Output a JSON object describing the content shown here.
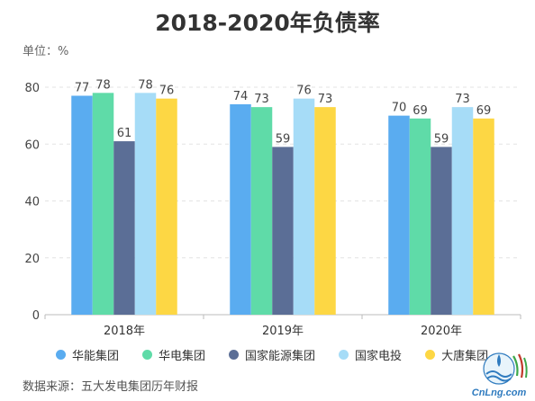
{
  "title": "2018-2020年负债率",
  "unit_label": "单位：%",
  "source": "数据来源：五大发电集团历年财报",
  "watermark": "CnLng.com",
  "chart_data": {
    "type": "bar",
    "title": "2018-2020年负债率",
    "categories": [
      "2018年",
      "2019年",
      "2020年"
    ],
    "ylim": [
      0,
      80
    ],
    "yticks": [
      0,
      20,
      40,
      60,
      80
    ],
    "grid": true,
    "legend_position": "bottom",
    "series": [
      {
        "name": "华能集团",
        "color": "#5aacf0",
        "values": [
          77,
          74,
          70
        ]
      },
      {
        "name": "华电集团",
        "color": "#5fdba8",
        "values": [
          78,
          73,
          69
        ]
      },
      {
        "name": "国家能源集团",
        "color": "#5b6e96",
        "values": [
          61,
          59,
          59
        ]
      },
      {
        "name": "国家电投",
        "color": "#a6dcf7",
        "values": [
          78,
          76,
          73
        ]
      },
      {
        "name": "大唐集团",
        "color": "#fdd744",
        "values": [
          76,
          73,
          69
        ]
      }
    ]
  }
}
